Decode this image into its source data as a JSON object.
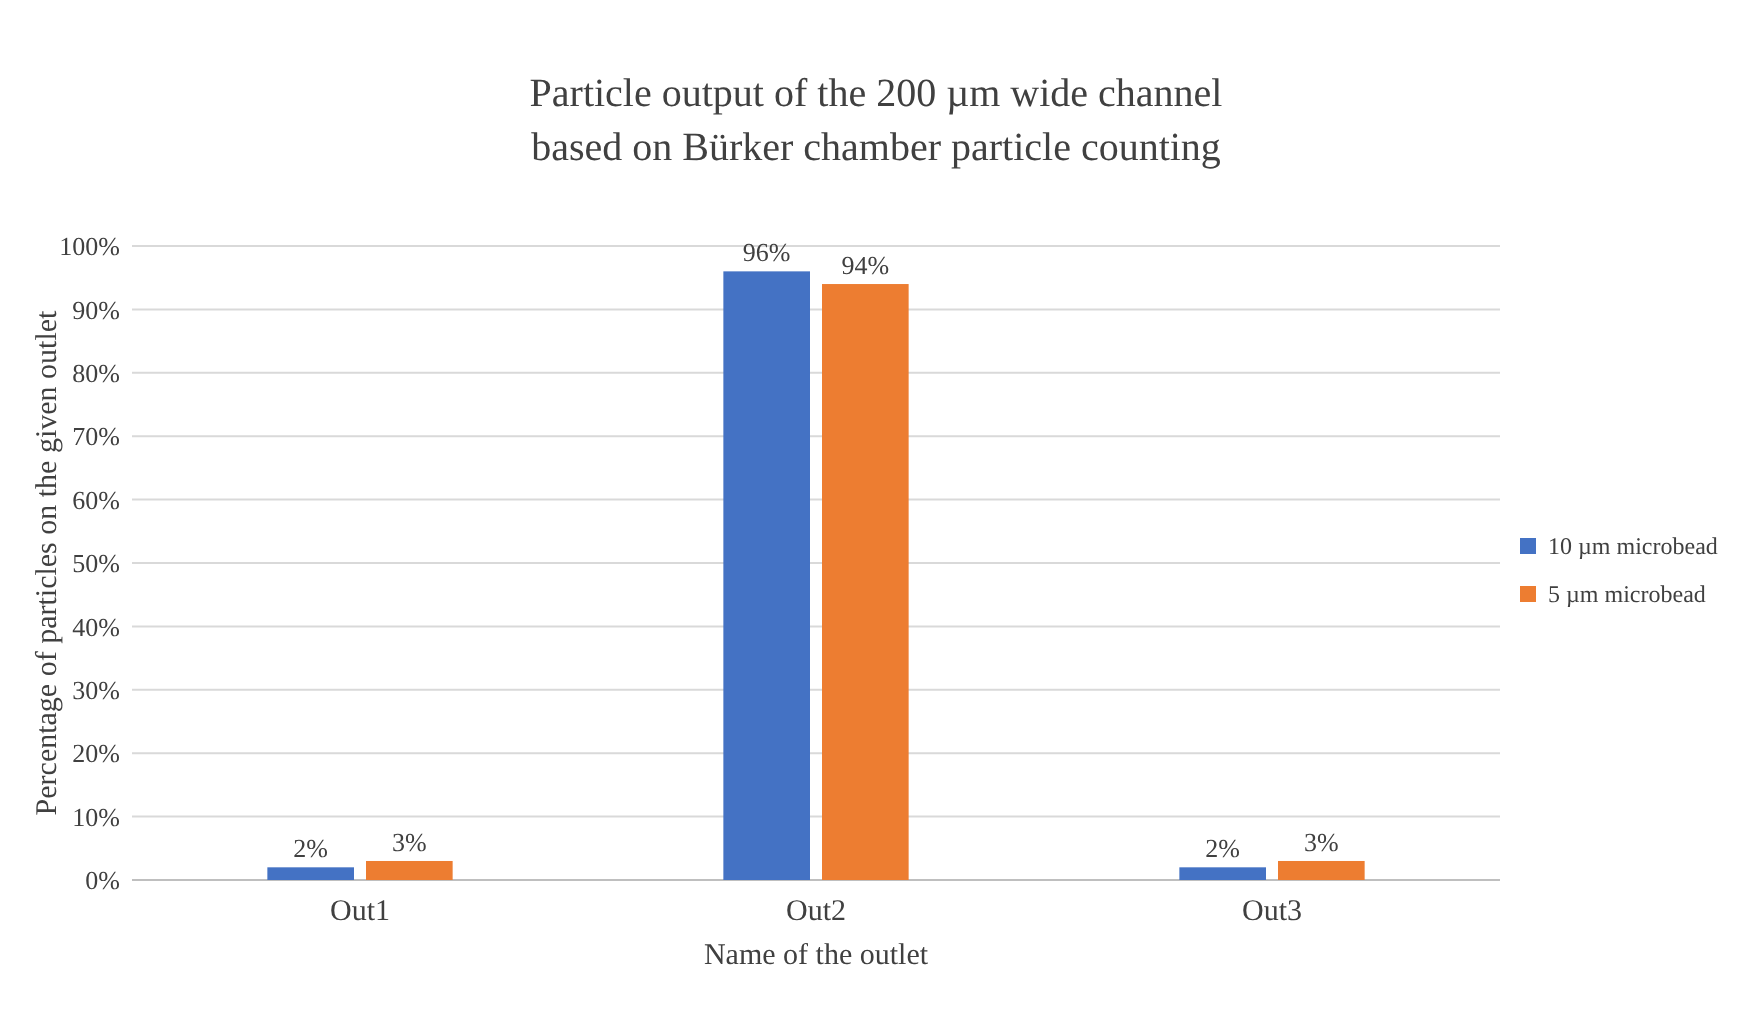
{
  "chart_data": {
    "type": "bar",
    "title": "Particle output of the 200 µm wide channel\nbased on Bürker chamber particle counting",
    "xlabel": "Name of the outlet",
    "ylabel": "Percentage of particles on the given outlet",
    "categories": [
      "Out1",
      "Out2",
      "Out3"
    ],
    "series": [
      {
        "name": "10 µm microbead",
        "color": "#4472c4",
        "values": [
          2,
          96,
          2
        ],
        "value_labels": [
          "2%",
          "96%",
          "2%"
        ]
      },
      {
        "name": "5 µm microbead",
        "color": "#ed7d31",
        "values": [
          3,
          94,
          3
        ],
        "value_labels": [
          "3%",
          "94%",
          "3%"
        ]
      }
    ],
    "ylim": [
      0,
      100
    ],
    "yticks": [
      {
        "value": 0,
        "label": "0%"
      },
      {
        "value": 10,
        "label": "10%"
      },
      {
        "value": 20,
        "label": "20%"
      },
      {
        "value": 30,
        "label": "30%"
      },
      {
        "value": 40,
        "label": "40%"
      },
      {
        "value": 50,
        "label": "50%"
      },
      {
        "value": 60,
        "label": "60%"
      },
      {
        "value": 70,
        "label": "70%"
      },
      {
        "value": 80,
        "label": "80%"
      },
      {
        "value": 90,
        "label": "90%"
      },
      {
        "value": 100,
        "label": "100%"
      }
    ],
    "grid": "y",
    "legend": "right"
  }
}
